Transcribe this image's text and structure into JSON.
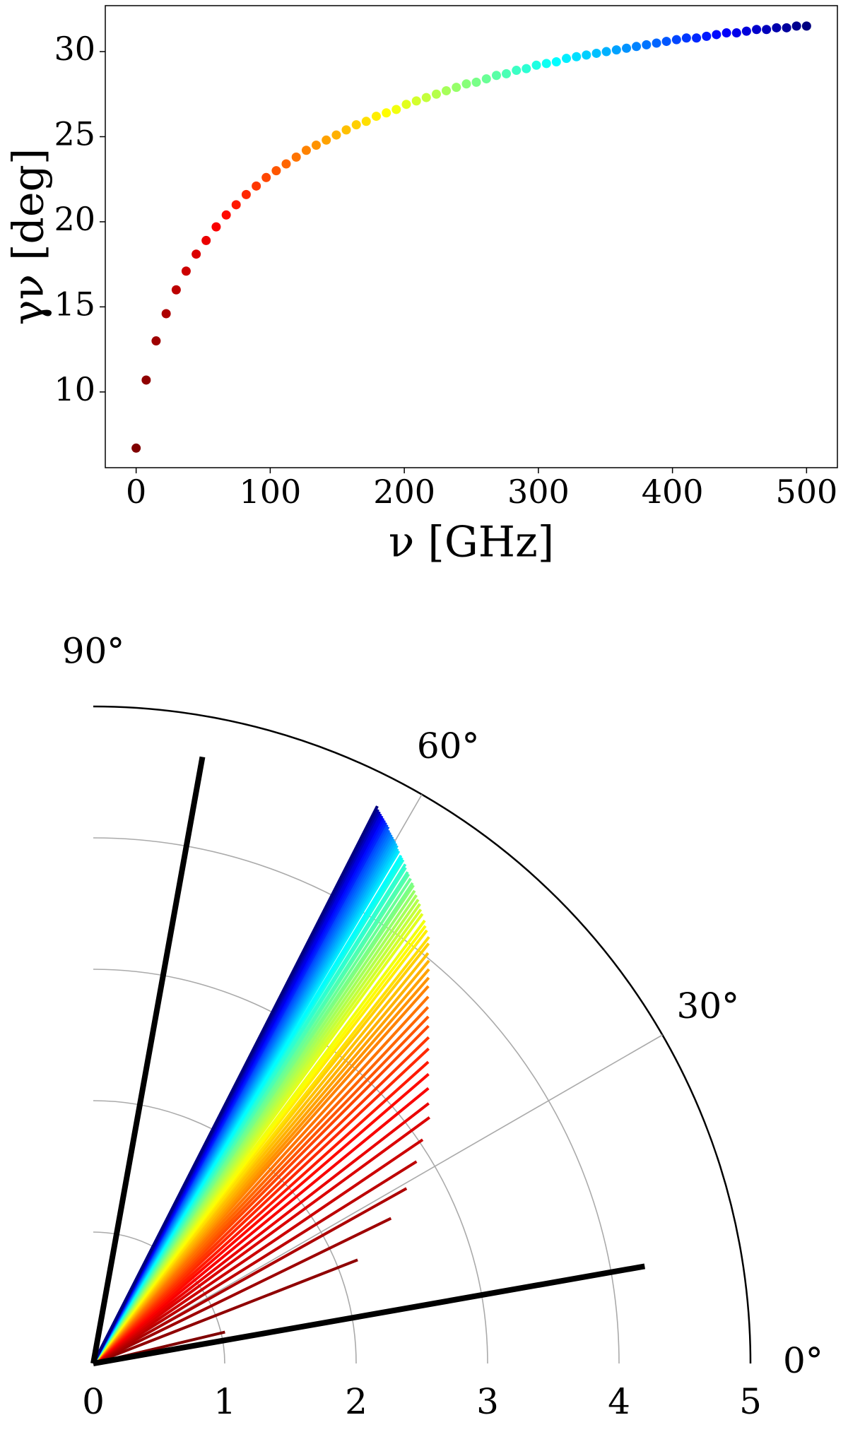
{
  "chart_data": [
    {
      "type": "scatter",
      "x_label": "ν [GHz]",
      "y_label": "γν [deg]",
      "x": [
        0,
        7.5,
        14.9,
        22.4,
        29.9,
        37.3,
        44.8,
        52.2,
        59.7,
        67.2,
        74.6,
        82.1,
        89.6,
        97.0,
        104.5,
        111.9,
        119.4,
        126.9,
        134.3,
        141.8,
        149.3,
        156.7,
        164.2,
        171.6,
        179.1,
        186.6,
        194.0,
        201.5,
        209.0,
        216.4,
        223.9,
        231.3,
        238.8,
        246.3,
        253.7,
        261.2,
        268.7,
        276.1,
        283.6,
        291.0,
        298.5,
        306.0,
        313.4,
        320.9,
        328.4,
        335.8,
        343.3,
        350.7,
        358.2,
        365.7,
        373.1,
        380.6,
        388.1,
        395.5,
        403.0,
        410.4,
        417.9,
        425.4,
        432.8,
        440.3,
        447.8,
        455.2,
        462.7,
        470.1,
        477.6,
        485.1,
        492.5,
        500.0
      ],
      "values": [
        6.7,
        10.7,
        13.0,
        14.6,
        16.0,
        17.1,
        18.1,
        18.9,
        19.7,
        20.4,
        21.0,
        21.6,
        22.1,
        22.6,
        23.0,
        23.4,
        23.8,
        24.2,
        24.5,
        24.8,
        25.1,
        25.4,
        25.7,
        25.9,
        26.2,
        26.4,
        26.6,
        26.9,
        27.1,
        27.3,
        27.5,
        27.7,
        27.9,
        28.1,
        28.2,
        28.4,
        28.6,
        28.7,
        28.9,
        29.0,
        29.2,
        29.3,
        29.4,
        29.6,
        29.7,
        29.8,
        29.9,
        30.0,
        30.1,
        30.2,
        30.3,
        30.4,
        30.5,
        30.6,
        30.7,
        30.8,
        30.8,
        30.9,
        31.0,
        31.1,
        31.1,
        31.2,
        31.3,
        31.3,
        31.4,
        31.4,
        31.5,
        31.5
      ],
      "colormap": "jet_r",
      "xlim": [
        -23,
        523
      ],
      "ylim": [
        5.55,
        32.7
      ],
      "xticks": [
        0,
        100,
        200,
        300,
        400,
        500
      ],
      "yticks": [
        10,
        15,
        20,
        25,
        30
      ]
    },
    {
      "type": "polar",
      "theta": [
        13.4,
        21.4,
        26.0,
        29.2,
        32.0,
        34.2,
        36.2,
        37.8,
        39.4,
        40.8,
        42.0,
        43.2,
        44.2,
        45.2,
        46.0,
        46.8,
        47.6,
        48.4,
        49.0,
        49.6,
        50.2,
        50.8,
        51.4,
        51.8,
        52.4,
        52.8,
        53.2,
        53.8,
        54.2,
        54.6,
        55.0,
        55.4,
        55.8,
        56.2,
        56.4,
        56.8,
        57.2,
        57.4,
        57.8,
        58.0,
        58.4,
        58.6,
        58.8,
        59.2,
        59.4,
        59.6,
        59.8,
        60.0,
        60.2,
        60.4,
        60.6,
        60.8,
        61.0,
        61.2,
        61.4,
        61.6,
        61.6,
        61.8,
        62.0,
        62.2,
        62.2,
        62.4,
        62.6,
        62.6,
        62.8,
        62.8,
        63.0,
        63.0
      ],
      "r": [
        1.03,
        2.16,
        2.52,
        2.73,
        2.9,
        3.03,
        3.17,
        3.23,
        3.3,
        3.37,
        3.43,
        3.5,
        3.56,
        3.62,
        3.67,
        3.72,
        3.78,
        3.84,
        3.89,
        3.94,
        3.99,
        4.03,
        4.09,
        4.13,
        4.16,
        4.18,
        4.21,
        4.24,
        4.26,
        4.29,
        4.31,
        4.33,
        4.35,
        4.38,
        4.39,
        4.41,
        4.43,
        4.44,
        4.46,
        4.48,
        4.5,
        4.51,
        4.52,
        4.54,
        4.55,
        4.57,
        4.58,
        4.59,
        4.6,
        4.61,
        4.62,
        4.63,
        4.64,
        4.66,
        4.67,
        4.68,
        4.68,
        4.69,
        4.7,
        4.71,
        4.71,
        4.72,
        4.73,
        4.73,
        4.74,
        4.74,
        4.76,
        4.76
      ],
      "colormap": "jet_r",
      "reference_lines": {
        "theta": [
          10,
          79.8
        ],
        "r": [
          4.26,
          4.69
        ],
        "color": "#000000"
      },
      "rlim": [
        0,
        5
      ],
      "rticks": [
        0,
        1,
        2,
        3,
        4,
        5
      ],
      "thetalim": [
        0,
        90
      ],
      "thetaticks": [
        {
          "value": 0,
          "label": "0°"
        },
        {
          "value": 30,
          "label": "30°"
        },
        {
          "value": 60,
          "label": "60°"
        },
        {
          "value": 90,
          "label": "90°"
        }
      ]
    }
  ]
}
